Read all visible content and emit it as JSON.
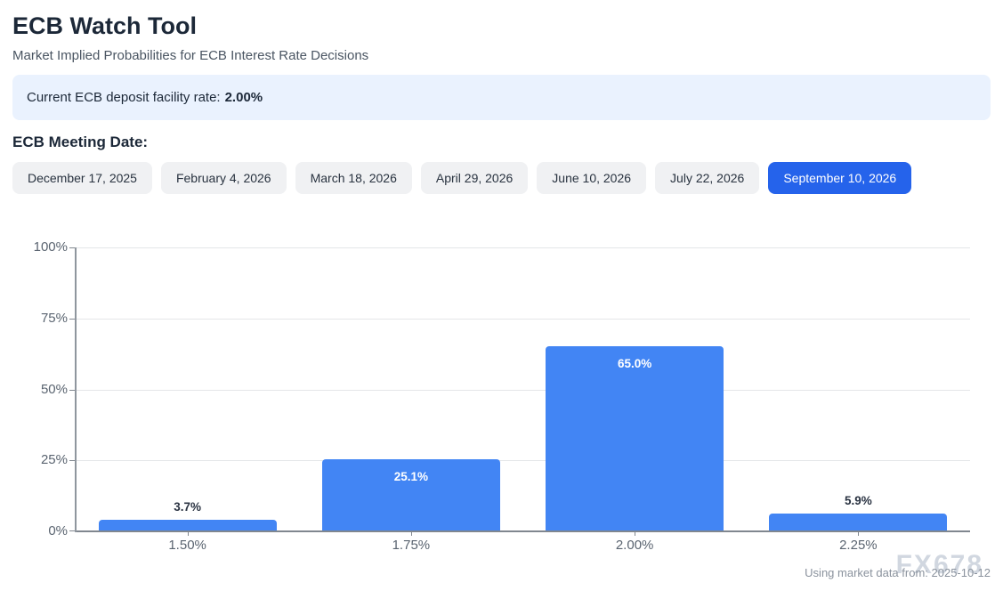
{
  "header": {
    "title": "ECB Watch Tool",
    "subtitle": "Market Implied Probabilities for ECB Interest Rate Decisions"
  },
  "info_bar": {
    "label": "Current ECB deposit facility rate:",
    "value": "2.00%"
  },
  "meeting_section": {
    "label": "ECB Meeting Date:",
    "dates": [
      "December 17, 2025",
      "February 4, 2026",
      "March 18, 2026",
      "April 29, 2026",
      "June 10, 2026",
      "July 22, 2026",
      "September 10, 2026"
    ],
    "selected": "September 10, 2026",
    "selected_index": 6
  },
  "chart_data": {
    "type": "bar",
    "title": "",
    "xlabel": "",
    "ylabel": "",
    "categories": [
      "1.50%",
      "1.75%",
      "2.00%",
      "2.25%"
    ],
    "values": [
      3.7,
      25.1,
      65.0,
      5.9
    ],
    "value_labels": [
      "3.7%",
      "25.1%",
      "65.0%",
      "5.9%"
    ],
    "ylim": [
      0,
      100
    ],
    "ytick_labels": [
      "0%",
      "25%",
      "50%",
      "75%",
      "100%"
    ],
    "grid": true,
    "legend": "none",
    "bar_color": "#4285F4"
  },
  "footer": {
    "source_note": "Using market data from: 2025-10-12",
    "watermark": "FX678"
  },
  "colors": {
    "accent": "#2563EB",
    "bar": "#4285F4",
    "info_bg": "#EAF2FE",
    "grid": "#E4E6E9",
    "axis": "#80878F"
  }
}
